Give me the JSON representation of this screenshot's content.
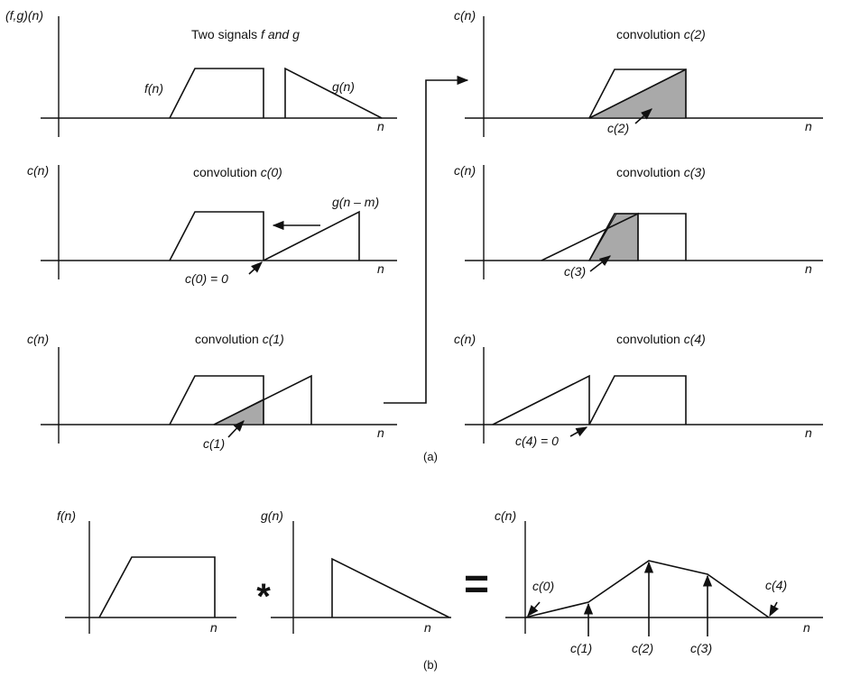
{
  "panel_a": {
    "caption": "(a)",
    "signals": {
      "ylabel": "(f,g)(n)",
      "title_plain": "Two signals ",
      "title_italic": "f and g",
      "f_label": "f(n)",
      "g_label": "g(n)",
      "xlabel": "n"
    },
    "conv0": {
      "ylabel": "c(n)",
      "title_plain": "convolution ",
      "title_italic": "c(0)",
      "shift_label": "g(n – m)",
      "result_label": "c(0) = 0",
      "xlabel": "n"
    },
    "conv1": {
      "ylabel": "c(n)",
      "title_plain": "convolution ",
      "title_italic": "c(1)",
      "result_label": "c(1)",
      "xlabel": "n"
    },
    "conv2": {
      "ylabel": "c(n)",
      "title_plain": "convolution ",
      "title_italic": "c(2)",
      "result_label": "c(2)",
      "xlabel": "n"
    },
    "conv3": {
      "ylabel": "c(n)",
      "title_plain": "convolution ",
      "title_italic": "c(3)",
      "result_label": "c(3)",
      "xlabel": "n"
    },
    "conv4": {
      "ylabel": "c(n)",
      "title_plain": "convolution ",
      "title_italic": "c(4)",
      "result_label": "c(4) = 0",
      "xlabel": "n"
    }
  },
  "panel_b": {
    "caption": "(b)",
    "f": {
      "ylabel": "f(n)",
      "xlabel": "n"
    },
    "operator": "*",
    "g": {
      "ylabel": "g(n)",
      "xlabel": "n"
    },
    "equals": "=",
    "result": {
      "ylabel": "c(n)",
      "xlabel": "n",
      "labels": [
        "c(0)",
        "c(1)",
        "c(2)",
        "c(3)",
        "c(4)"
      ]
    }
  }
}
